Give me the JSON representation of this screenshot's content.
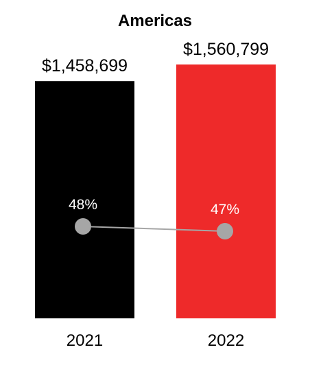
{
  "chart_data": {
    "type": "bar",
    "title": "Americas",
    "categories": [
      "2021",
      "2022"
    ],
    "values": [
      1458699,
      1560799
    ],
    "value_labels": [
      "$1,458,699",
      "$1,560,799"
    ],
    "bar_colors": [
      "#000000",
      "#ee2a2a"
    ],
    "line_series": {
      "values": [
        48,
        47
      ],
      "labels": [
        "48%",
        "47%"
      ],
      "marker_color": "#a6a6a6",
      "line_color": "#a6a6a6"
    },
    "xlabel": "",
    "ylabel": "",
    "grid": false,
    "legend": "none"
  }
}
